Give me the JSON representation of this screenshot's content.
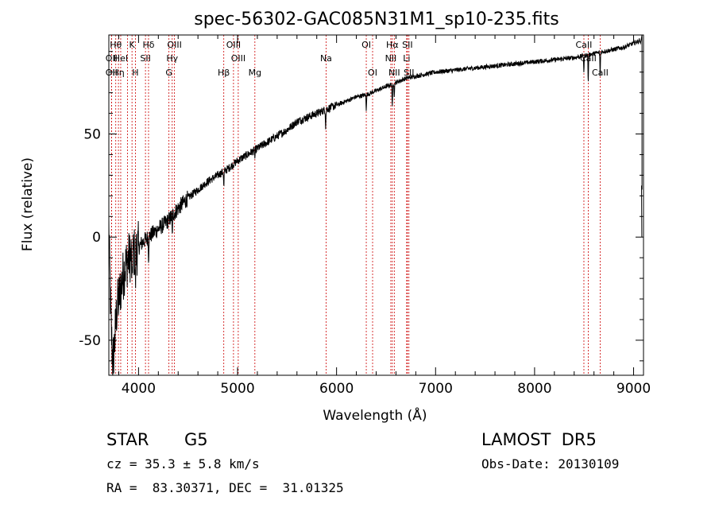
{
  "chart_data": {
    "type": "line",
    "title": "spec-56302-GAC085N31M1_sp10-235.fits",
    "xlabel": "Wavelength (Å)",
    "ylabel": "Flux (relative)",
    "xlim": [
      3700,
      9100
    ],
    "ylim": [
      -67,
      98
    ],
    "xticks": [
      4000,
      5000,
      6000,
      7000,
      8000,
      9000
    ],
    "yticks": [
      -50,
      0,
      50
    ],
    "grid": false,
    "line_color": "#000000",
    "marker_color": "#cc0000",
    "spectrum_anchors": {
      "x": [
        3700,
        3720,
        3740,
        3760,
        3780,
        3800,
        3830,
        3860,
        3900,
        3950,
        4000,
        4050,
        4100,
        4150,
        4200,
        4250,
        4300,
        4350,
        4400,
        4500,
        4600,
        4700,
        4800,
        4900,
        5000,
        5100,
        5200,
        5300,
        5400,
        5500,
        5600,
        5700,
        5800,
        5900,
        6000,
        6100,
        6200,
        6300,
        6400,
        6500,
        6600,
        6700,
        6800,
        6900,
        7000,
        7200,
        7400,
        7600,
        7800,
        8000,
        8200,
        8400,
        8500,
        8600,
        8700,
        8800,
        8900,
        9000,
        9050,
        9090
      ],
      "y": [
        5,
        -40,
        -62,
        -50,
        -35,
        -30,
        -22,
        -15,
        -10,
        -8,
        -5,
        -2,
        0,
        2,
        4,
        6,
        8,
        11,
        14,
        19,
        23,
        27,
        30,
        33,
        37,
        40,
        43,
        46,
        49,
        52,
        56,
        58,
        60,
        62,
        64,
        66,
        68,
        69,
        71,
        73,
        75,
        77,
        78,
        79,
        80,
        81,
        82,
        83,
        84,
        85,
        86,
        87,
        88,
        89,
        90,
        91,
        92,
        94,
        95,
        97
      ]
    },
    "absorption_features": [
      {
        "x": 3934,
        "depth": 20
      },
      {
        "x": 3968,
        "depth": 18
      },
      {
        "x": 4101,
        "depth": 10
      },
      {
        "x": 4340,
        "depth": 10
      },
      {
        "x": 4861,
        "depth": 8
      },
      {
        "x": 5175,
        "depth": 4
      },
      {
        "x": 5890,
        "depth": 8
      },
      {
        "x": 6300,
        "depth": 7
      },
      {
        "x": 6563,
        "depth": 12
      },
      {
        "x": 6583,
        "depth": 6
      },
      {
        "x": 8498,
        "depth": 8
      },
      {
        "x": 8542,
        "depth": 14
      },
      {
        "x": 8662,
        "depth": 12
      }
    ],
    "line_markers": [
      {
        "wl": 3727,
        "label": "OII",
        "row": 2
      },
      {
        "wl": 3727,
        "label": "OII",
        "row": 3
      },
      {
        "wl": 3770,
        "label": "Hθ",
        "row": 1
      },
      {
        "wl": 3797,
        "label": "Hη",
        "row": 3
      },
      {
        "wl": 3820,
        "label": "HeI",
        "row": 2
      },
      {
        "wl": 3889,
        "label": "",
        "row": 0
      },
      {
        "wl": 3934,
        "label": "K",
        "row": 1
      },
      {
        "wl": 3968,
        "label": "H",
        "row": 3
      },
      {
        "wl": 4070,
        "label": "SII",
        "row": 2
      },
      {
        "wl": 4101,
        "label": "Hδ",
        "row": 1
      },
      {
        "wl": 4340,
        "label": "Hγ",
        "row": 2
      },
      {
        "wl": 4307,
        "label": "G",
        "row": 3
      },
      {
        "wl": 4363,
        "label": "OIII",
        "row": 1
      },
      {
        "wl": 4861,
        "label": "Hβ",
        "row": 3
      },
      {
        "wl": 4959,
        "label": "OIII",
        "row": 1
      },
      {
        "wl": 5007,
        "label": "OIII",
        "row": 2
      },
      {
        "wl": 5175,
        "label": "Mg",
        "row": 3
      },
      {
        "wl": 5894,
        "label": "Na",
        "row": 2
      },
      {
        "wl": 6300,
        "label": "OI",
        "row": 1
      },
      {
        "wl": 6364,
        "label": "OI",
        "row": 3
      },
      {
        "wl": 6548,
        "label": "NII",
        "row": 2
      },
      {
        "wl": 6563,
        "label": "Hα",
        "row": 1
      },
      {
        "wl": 6583,
        "label": "NII",
        "row": 3
      },
      {
        "wl": 6708,
        "label": "Li",
        "row": 2
      },
      {
        "wl": 6716,
        "label": "SII",
        "row": 1
      },
      {
        "wl": 6731,
        "label": "SII",
        "row": 3
      },
      {
        "wl": 8498,
        "label": "CaII",
        "row": 1
      },
      {
        "wl": 8542,
        "label": "CaII",
        "row": 2
      },
      {
        "wl": 8662,
        "label": "CaII",
        "row": 3
      }
    ]
  },
  "info": {
    "class": "STAR",
    "subclass": "G5",
    "survey": "LAMOST  DR5",
    "cz": "cz = 35.3 ± 5.8 km/s",
    "obs_date": "Obs-Date: 20130109",
    "coords": "RA =  83.30371, DEC =  31.01325"
  }
}
